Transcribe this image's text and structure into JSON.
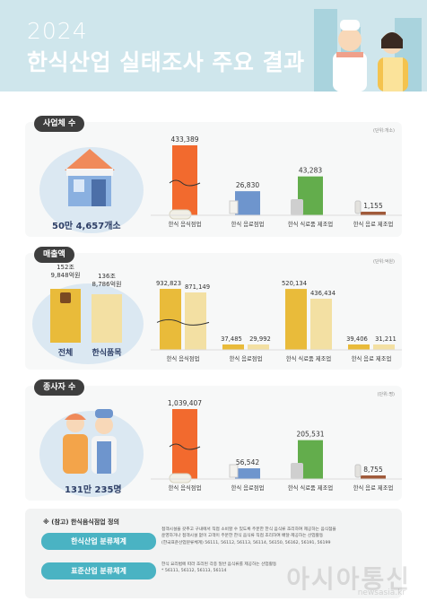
{
  "header": {
    "year": "2024",
    "title": "한식산업 실태조사 주요 결과"
  },
  "colors": {
    "orange": "#f26a2e",
    "blue": "#6e95cd",
    "green": "#63ad4c",
    "brown": "#a05a3a",
    "gold": "#e9bb3a",
    "cream": "#f3e0a3",
    "dark": "#3e3e3e",
    "teal": "#4ab3c3"
  },
  "sections": {
    "businesses": {
      "label": "사업체 수",
      "unit": "(단위:개소)",
      "total": "50만 4,657개소",
      "icons": [
        "store-icon",
        "bowl-icon",
        "cup-icon",
        "machine-icon",
        "bottle-icon"
      ]
    },
    "sales": {
      "label": "매출액",
      "unit": "(단위:억원)",
      "total_value": "152조 9,848억원",
      "total_label": "전체",
      "hansik_value": "136조 8,786억원",
      "hansik_label": "한식품목"
    },
    "employees": {
      "label": "종사자 수",
      "unit": "(단위:명)",
      "total": "131만 235명"
    }
  },
  "chart_data": [
    {
      "type": "bar",
      "title": "사업체 수",
      "categories": [
        "한식 음식점업",
        "한식 음료점업",
        "한식 식료품 제조업",
        "한식 음료 제조업"
      ],
      "values": [
        433389,
        26830,
        43283,
        1155
      ],
      "value_labels": [
        "433,389",
        "26,830",
        "43,283",
        "1,155"
      ],
      "colors": [
        "#f26a2e",
        "#6e95cd",
        "#63ad4c",
        "#a05a3a"
      ],
      "broken_axis": true
    },
    {
      "type": "bar",
      "title": "매출액",
      "categories": [
        "한식 음식점업",
        "한식 음료점업",
        "한식 식료품 제조업",
        "한식 음료 제조업"
      ],
      "series": [
        {
          "name": "전체",
          "values": [
            932823,
            37485,
            520134,
            39406
          ],
          "labels": [
            "932,823",
            "37,485",
            "520,134",
            "39,406"
          ]
        },
        {
          "name": "한식품목",
          "values": [
            871149,
            29992,
            436434,
            31211
          ],
          "labels": [
            "871,149",
            "29,992",
            "436,434",
            "31,211"
          ]
        }
      ],
      "colors": [
        "#e9bb3a",
        "#f3e0a3"
      ],
      "broken_axis": true
    },
    {
      "type": "bar",
      "title": "종사자 수",
      "categories": [
        "한식 음식점업",
        "한식 음료점업",
        "한식 식료품 제조업",
        "한식 음료 제조업"
      ],
      "values": [
        1039407,
        56542,
        205531,
        8755
      ],
      "value_labels": [
        "1,039,407",
        "56,542",
        "205,531",
        "8,755"
      ],
      "colors": [
        "#f26a2e",
        "#6e95cd",
        "#63ad4c",
        "#a05a3a"
      ],
      "broken_axis": true
    }
  ],
  "note": {
    "title": "※ (참고) 한식음식점업 정의",
    "btn1": "한식산업 분류체계",
    "text1a": "접객시설을 갖추고 구내에서 직접 소비할 수 있도록 주문한 한식 음식류 조리하여 제공하는 음식점을",
    "text1b": "운영하거나 접객시설 없이 고객이 주문한 한식 음식류 직접 조리하여 배달·제공하는 산업활동",
    "text1c": "(한국표준산업분류체계) 56111, 56112, 56113, 56114, 56150, 56162, 56191, 56199",
    "btn2": "표준산업 분류체계",
    "text2a": "한식 요리법에 따라 조리된 각종 일반 음식류를 제공하는 산업활동",
    "text2b": "* 56111, 56112, 56113, 56114"
  },
  "watermark": {
    "main": "아시아통신",
    "sub": "newsasia.kr"
  }
}
